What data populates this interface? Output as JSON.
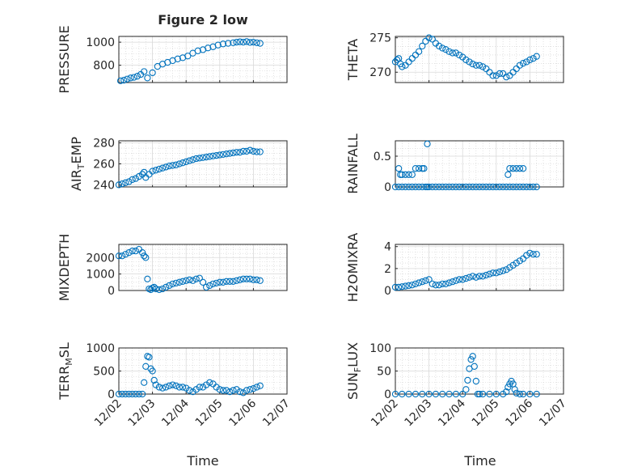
{
  "figure": {
    "title": "Figure 2 low",
    "marker_color": "#0072bd"
  },
  "chart_data": [
    {
      "type": "scatter",
      "id": "pressure",
      "ylabel_parts": [
        {
          "t": "PRESSURE"
        }
      ],
      "xlim": [
        0,
        5
      ],
      "ylim": [
        650,
        1050
      ],
      "yticks": [
        800,
        1000
      ],
      "ytick_labels": [
        "800",
        "1000"
      ],
      "x": [
        0.05,
        0.15,
        0.25,
        0.35,
        0.45,
        0.55,
        0.65,
        0.75,
        0.85,
        1.0,
        1.15,
        1.3,
        1.45,
        1.6,
        1.75,
        1.9,
        2.05,
        2.2,
        2.35,
        2.5,
        2.65,
        2.8,
        2.95,
        3.1,
        3.25,
        3.4,
        3.5,
        3.6,
        3.7,
        3.8,
        3.9,
        4.0,
        4.1,
        4.2
      ],
      "y": [
        665,
        670,
        680,
        690,
        695,
        705,
        720,
        745,
        690,
        735,
        790,
        810,
        825,
        840,
        855,
        865,
        880,
        905,
        925,
        935,
        950,
        960,
        975,
        985,
        990,
        995,
        1000,
        1003,
        1000,
        1005,
        998,
        1000,
        995,
        990
      ]
    },
    {
      "type": "scatter",
      "id": "theta",
      "ylabel_parts": [
        {
          "t": "THETA"
        }
      ],
      "xlim": [
        0,
        5
      ],
      "ylim": [
        268.5,
        275.2
      ],
      "yticks": [
        270,
        275
      ],
      "ytick_labels": [
        "270",
        "275"
      ],
      "x": [
        0.0,
        0.05,
        0.1,
        0.15,
        0.2,
        0.3,
        0.4,
        0.5,
        0.6,
        0.7,
        0.8,
        0.9,
        1.0,
        1.1,
        1.2,
        1.3,
        1.4,
        1.5,
        1.6,
        1.7,
        1.8,
        1.9,
        2.0,
        2.1,
        2.2,
        2.3,
        2.4,
        2.5,
        2.6,
        2.7,
        2.8,
        2.9,
        3.0,
        3.1,
        3.2,
        3.3,
        3.4,
        3.5,
        3.6,
        3.7,
        3.8,
        3.9,
        4.0,
        4.1,
        4.2
      ],
      "y": [
        271.5,
        271.8,
        272.0,
        271.2,
        270.8,
        271.0,
        271.5,
        272.0,
        272.5,
        273.0,
        273.8,
        274.5,
        275.0,
        274.8,
        274.2,
        273.8,
        273.5,
        273.3,
        273.0,
        272.8,
        272.8,
        272.5,
        272.2,
        271.8,
        271.5,
        271.2,
        271.0,
        271.0,
        270.8,
        270.5,
        270.0,
        269.5,
        269.5,
        269.8,
        269.8,
        269.3,
        269.5,
        270.0,
        270.5,
        271.0,
        271.3,
        271.5,
        271.8,
        272.0,
        272.3
      ]
    },
    {
      "type": "scatter",
      "id": "air_temp",
      "ylabel_parts": [
        {
          "t": "AIR"
        },
        {
          "t": "T",
          "sub": true
        },
        {
          "t": "EMP"
        }
      ],
      "xlim": [
        0,
        5
      ],
      "ylim": [
        238,
        282
      ],
      "yticks": [
        240,
        260,
        280
      ],
      "ytick_labels": [
        "240",
        "260",
        "280"
      ],
      "x": [
        0.0,
        0.1,
        0.2,
        0.3,
        0.4,
        0.5,
        0.6,
        0.7,
        0.75,
        0.8,
        0.9,
        1.0,
        1.1,
        1.2,
        1.3,
        1.4,
        1.5,
        1.6,
        1.7,
        1.8,
        1.9,
        2.0,
        2.1,
        2.2,
        2.3,
        2.4,
        2.5,
        2.6,
        2.7,
        2.8,
        2.9,
        3.0,
        3.1,
        3.2,
        3.3,
        3.4,
        3.5,
        3.6,
        3.7,
        3.8,
        3.9,
        4.0,
        4.1,
        4.2
      ],
      "y": [
        240,
        241,
        242,
        243,
        245,
        246,
        248,
        250,
        252,
        247,
        250,
        253,
        254,
        255,
        256,
        257,
        258,
        258.5,
        259,
        260,
        261,
        262,
        263,
        264,
        265,
        265.5,
        266,
        266.5,
        267,
        267.5,
        268,
        268.5,
        269,
        269.5,
        270,
        270.5,
        271,
        271,
        272,
        272,
        273,
        272,
        271.5,
        271.5
      ]
    },
    {
      "type": "scatter",
      "id": "rainfall",
      "ylabel_parts": [
        {
          "t": "RAINFALL"
        }
      ],
      "xlim": [
        0,
        5
      ],
      "ylim": [
        0,
        0.75
      ],
      "yticks": [
        0,
        0.5
      ],
      "ytick_labels": [
        "0",
        "0.5"
      ],
      "x": [
        0.0,
        0.1,
        0.2,
        0.3,
        0.4,
        0.5,
        0.6,
        0.7,
        0.8,
        0.9,
        1.0,
        1.1,
        1.2,
        1.3,
        1.4,
        1.5,
        1.6,
        1.7,
        1.8,
        1.9,
        2.0,
        2.1,
        2.2,
        2.3,
        2.4,
        2.5,
        2.6,
        2.7,
        2.8,
        2.9,
        3.0,
        3.1,
        3.2,
        3.3,
        3.4,
        3.5,
        3.6,
        3.7,
        3.8,
        3.9,
        4.0,
        4.1,
        4.2,
        0.1,
        0.15,
        0.2,
        0.3,
        0.4,
        0.5,
        0.6,
        0.7,
        0.8,
        0.85,
        0.95,
        3.35,
        3.4,
        3.5,
        3.6,
        3.7,
        3.8,
        0.95
      ],
      "y": [
        0,
        0,
        0,
        0,
        0,
        0,
        0,
        0,
        0,
        0,
        0,
        0,
        0,
        0,
        0,
        0,
        0,
        0,
        0,
        0,
        0,
        0,
        0,
        0,
        0,
        0,
        0,
        0,
        0,
        0,
        0,
        0,
        0,
        0,
        0,
        0,
        0,
        0,
        0,
        0,
        0,
        0,
        0,
        0.3,
        0.2,
        0.2,
        0.2,
        0.2,
        0.2,
        0.3,
        0.3,
        0.3,
        0.3,
        0.7,
        0.2,
        0.3,
        0.3,
        0.3,
        0.3,
        0.3,
        0
      ]
    },
    {
      "type": "scatter",
      "id": "mixdepth",
      "ylabel_parts": [
        {
          "t": "MIXDEPTH"
        }
      ],
      "xlim": [
        0,
        5
      ],
      "ylim": [
        0,
        2800
      ],
      "yticks": [
        0,
        1000,
        2000
      ],
      "ytick_labels": [
        "0",
        "1000",
        "2000"
      ],
      "x": [
        0.0,
        0.1,
        0.2,
        0.3,
        0.4,
        0.5,
        0.6,
        0.7,
        0.75,
        0.8,
        0.85,
        0.9,
        0.95,
        1.0,
        1.05,
        1.1,
        1.2,
        1.3,
        1.4,
        1.5,
        1.6,
        1.7,
        1.8,
        1.9,
        2.0,
        2.1,
        2.2,
        2.3,
        2.4,
        2.5,
        2.6,
        2.7,
        2.8,
        2.9,
        3.0,
        3.1,
        3.2,
        3.3,
        3.4,
        3.5,
        3.6,
        3.7,
        3.8,
        3.9,
        4.0,
        4.1,
        4.2
      ],
      "y": [
        2100,
        2100,
        2200,
        2300,
        2400,
        2400,
        2500,
        2300,
        2100,
        2000,
        700,
        100,
        50,
        150,
        200,
        100,
        50,
        100,
        200,
        300,
        400,
        450,
        500,
        550,
        600,
        650,
        600,
        700,
        750,
        500,
        200,
        300,
        400,
        450,
        500,
        500,
        550,
        550,
        550,
        600,
        650,
        700,
        700,
        700,
        650,
        650,
        600
      ]
    },
    {
      "type": "scatter",
      "id": "h2omixra",
      "ylabel_parts": [
        {
          "t": "H2OMIXRA"
        }
      ],
      "xlim": [
        0,
        5
      ],
      "ylim": [
        0,
        4.2
      ],
      "yticks": [
        0,
        2,
        4
      ],
      "ytick_labels": [
        "0",
        "2",
        "4"
      ],
      "x": [
        0.0,
        0.1,
        0.2,
        0.3,
        0.4,
        0.5,
        0.6,
        0.7,
        0.8,
        0.9,
        1.0,
        1.1,
        1.2,
        1.3,
        1.4,
        1.5,
        1.6,
        1.7,
        1.8,
        1.9,
        2.0,
        2.1,
        2.2,
        2.3,
        2.4,
        2.5,
        2.6,
        2.7,
        2.8,
        2.9,
        3.0,
        3.1,
        3.2,
        3.3,
        3.4,
        3.5,
        3.6,
        3.7,
        3.8,
        3.9,
        4.0,
        4.1,
        4.2
      ],
      "y": [
        0.3,
        0.3,
        0.35,
        0.4,
        0.45,
        0.5,
        0.6,
        0.7,
        0.8,
        0.9,
        1.0,
        0.6,
        0.5,
        0.5,
        0.6,
        0.6,
        0.7,
        0.8,
        0.9,
        1.0,
        1.0,
        1.1,
        1.2,
        1.3,
        1.2,
        1.3,
        1.3,
        1.4,
        1.5,
        1.6,
        1.6,
        1.7,
        1.8,
        1.9,
        2.1,
        2.3,
        2.5,
        2.7,
        2.9,
        3.2,
        3.4,
        3.3,
        3.3
      ]
    },
    {
      "type": "scatter",
      "id": "terr_msl",
      "ylabel_parts": [
        {
          "t": "TERR"
        },
        {
          "t": "M",
          "sub": true
        },
        {
          "t": "SL"
        }
      ],
      "xlim": [
        0,
        5
      ],
      "ylim": [
        0,
        1000
      ],
      "yticks": [
        0,
        500,
        1000
      ],
      "ytick_labels": [
        "0",
        "500",
        "1000"
      ],
      "x": [
        0.0,
        0.1,
        0.2,
        0.3,
        0.4,
        0.5,
        0.6,
        0.7,
        0.75,
        0.8,
        0.85,
        0.9,
        0.95,
        1.0,
        1.05,
        1.1,
        1.2,
        1.3,
        1.4,
        1.5,
        1.6,
        1.7,
        1.8,
        1.9,
        2.0,
        2.1,
        2.2,
        2.3,
        2.4,
        2.5,
        2.6,
        2.7,
        2.8,
        2.9,
        3.0,
        3.1,
        3.2,
        3.3,
        3.4,
        3.5,
        3.6,
        3.7,
        3.8,
        3.9,
        4.0,
        4.1,
        4.2
      ],
      "y": [
        0,
        0,
        0,
        0,
        0,
        0,
        0,
        0,
        250,
        600,
        820,
        800,
        550,
        500,
        300,
        200,
        150,
        130,
        150,
        180,
        200,
        180,
        150,
        150,
        130,
        80,
        50,
        100,
        150,
        150,
        200,
        250,
        220,
        150,
        100,
        80,
        80,
        50,
        80,
        100,
        50,
        30,
        80,
        100,
        120,
        150,
        180
      ]
    },
    {
      "type": "scatter",
      "id": "sun_flux",
      "ylabel_parts": [
        {
          "t": "SUN"
        },
        {
          "t": "F",
          "sub": true
        },
        {
          "t": "LUX"
        }
      ],
      "xlim": [
        0,
        5
      ],
      "ylim": [
        0,
        100
      ],
      "yticks": [
        0,
        50,
        100
      ],
      "ytick_labels": [
        "0",
        "50",
        "100"
      ],
      "x": [
        0.0,
        0.2,
        0.4,
        0.6,
        0.8,
        1.0,
        1.2,
        1.4,
        1.6,
        1.8,
        2.0,
        2.1,
        2.15,
        2.2,
        2.25,
        2.3,
        2.35,
        2.4,
        2.45,
        2.5,
        2.6,
        2.8,
        3.0,
        3.2,
        3.3,
        3.35,
        3.4,
        3.45,
        3.5,
        3.55,
        3.6,
        3.7,
        3.8,
        4.0,
        4.2
      ],
      "y": [
        0,
        0,
        0,
        0,
        0,
        0,
        0,
        0,
        0,
        0,
        0,
        10,
        30,
        55,
        75,
        82,
        60,
        28,
        0,
        0,
        0,
        0,
        0,
        0,
        5,
        15,
        22,
        28,
        22,
        10,
        2,
        0,
        0,
        0,
        0
      ]
    }
  ],
  "x_axis": {
    "ticks": [
      0,
      1,
      2,
      3,
      4,
      5
    ],
    "tick_labels": [
      "12/02",
      "12/03",
      "12/04",
      "12/05",
      "12/06",
      "12/07"
    ],
    "label": "Time"
  }
}
